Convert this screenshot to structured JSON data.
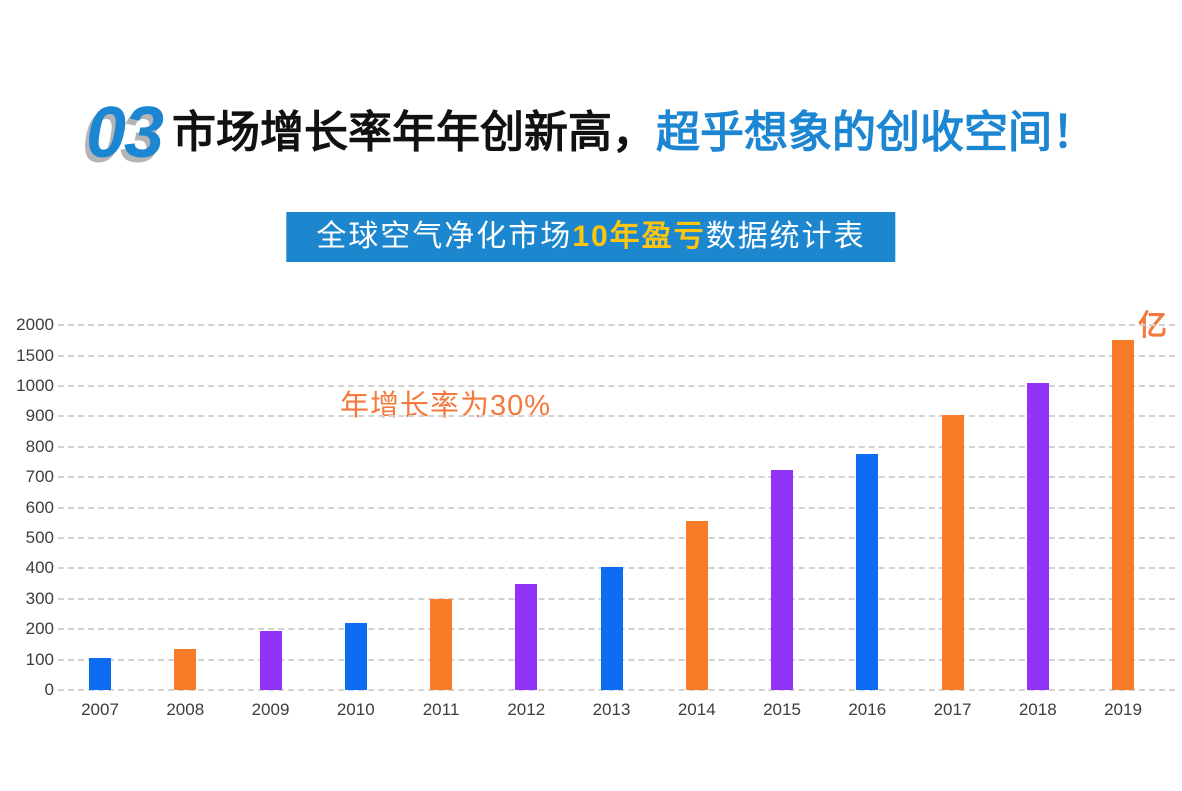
{
  "header": {
    "section_number": "03",
    "title_black": "市场增长率年年创新高，",
    "title_blue": "超乎想象的创收空间！",
    "banner": {
      "text_before": "全球空气净化市场",
      "text_highlight": "10年盈亏",
      "text_after": "数据统计表"
    },
    "colors": {
      "accent_blue": "#1d86d3",
      "banner_bg": "#1c87ce",
      "highlight_yellow": "#ffc40e"
    }
  },
  "chart_data": {
    "type": "bar",
    "title": "全球空气净化市场10年盈亏数据统计表",
    "unit_label": "亿",
    "annotation": "年增长率为30%",
    "categories": [
      "2007",
      "2008",
      "2009",
      "2010",
      "2011",
      "2012",
      "2013",
      "2014",
      "2015",
      "2016",
      "2017",
      "2018",
      "2019"
    ],
    "values": [
      105,
      135,
      195,
      220,
      300,
      350,
      405,
      555,
      725,
      775,
      905,
      1050,
      1750
    ],
    "bar_color_names": [
      "blue",
      "orange",
      "purple",
      "blue",
      "orange",
      "purple",
      "blue",
      "orange",
      "purple",
      "blue",
      "orange",
      "purple",
      "orange"
    ],
    "y_ticks": [
      0,
      100,
      200,
      300,
      400,
      500,
      600,
      700,
      800,
      900,
      1000,
      1500,
      2000
    ],
    "y_scale_note": "non-linear: equal pixel spacing per tick; 0-1000 in steps of 100, then 1500, 2000",
    "ylim": [
      0,
      2000
    ],
    "grid": "dashed horizontal",
    "legend": "none",
    "colors": {
      "bar_blue": "#0d6cf2",
      "bar_orange": "#f87b28",
      "bar_purple": "#9233fa",
      "annotation_orange": "#f4793c",
      "grid_gray": "#d2d2d2",
      "axis_text": "#3d3d3d"
    }
  }
}
